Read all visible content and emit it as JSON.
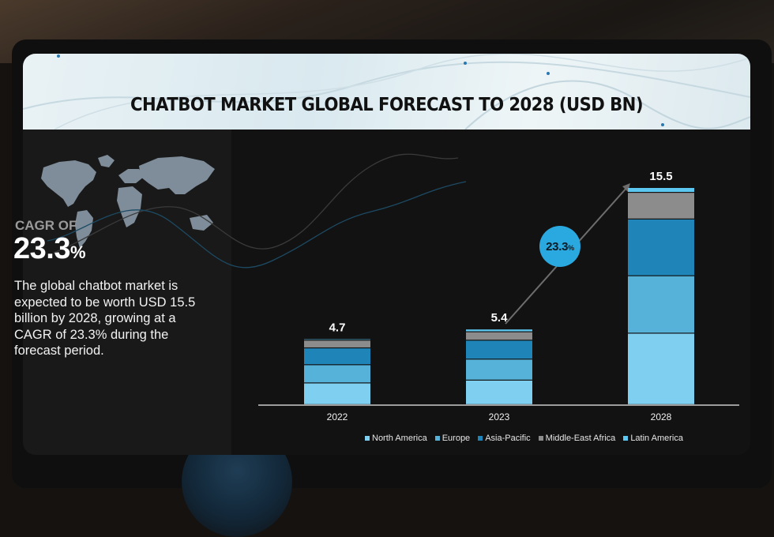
{
  "header": {
    "title": "CHATBOT MARKET GLOBAL FORECAST TO 2028 (USD BN)"
  },
  "summary": {
    "cagr_label": "CAGR OF",
    "cagr_number": "23.3",
    "cagr_percent": "%",
    "description": "The global chatbot market is expected to be worth USD 15.5 billion by 2028, growing at a CAGR of 23.3% during the forecast period."
  },
  "growth_bubble": {
    "number": "23.3",
    "percent": "%"
  },
  "colors": {
    "North America": "#7fd0f0",
    "Europe": "#56b2d8",
    "Asia-Pacific": "#1f84b8",
    "Middle-East Africa": "#8c8c8c",
    "Latin America": "#5cc8f2",
    "accent": "#2aa9e0"
  },
  "icons": {
    "map": "world-map-icon"
  },
  "chart_data": {
    "type": "bar",
    "stacked": true,
    "title": "CHATBOT MARKET GLOBAL FORECAST TO 2028 (USD BN)",
    "categories": [
      "2022",
      "2023",
      "2028"
    ],
    "totals": [
      "4.7",
      "5.4",
      "15.5"
    ],
    "series": [
      {
        "name": "North America",
        "values": [
          1.55,
          1.75,
          5.1
        ]
      },
      {
        "name": "Europe",
        "values": [
          1.3,
          1.5,
          4.1
        ]
      },
      {
        "name": "Asia-Pacific",
        "values": [
          1.2,
          1.35,
          4.05
        ]
      },
      {
        "name": "Middle-East Africa",
        "values": [
          0.55,
          0.6,
          1.9
        ]
      },
      {
        "name": "Latin America",
        "values": [
          0.1,
          0.2,
          0.35
        ]
      }
    ],
    "annotation": "23.3%",
    "ylim": [
      0,
      15.5
    ],
    "grid": false,
    "legend": "bottom"
  }
}
